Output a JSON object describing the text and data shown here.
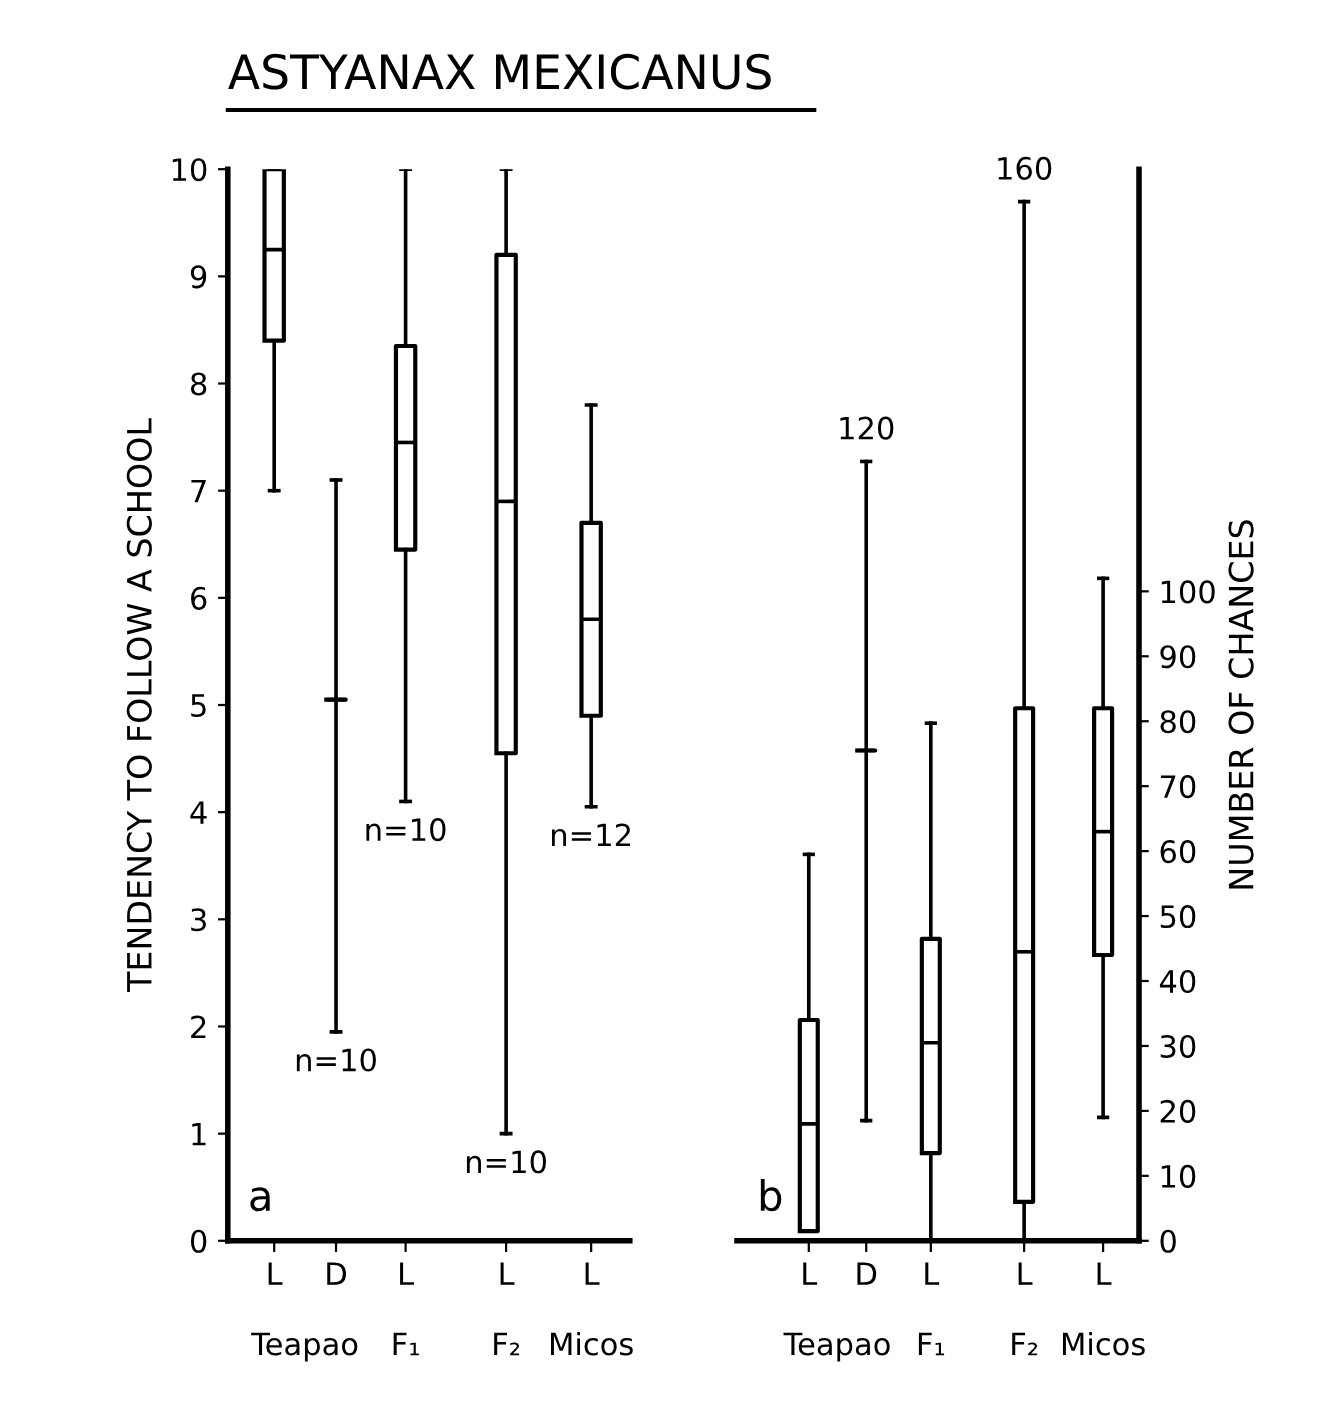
{
  "chart_data": [
    {
      "type": "box",
      "title": "ASTYANAX MEXICANUS",
      "ylabel": "TENDENCY TO FOLLOW A SCHOOL",
      "categories": [
        "L",
        "D",
        "L",
        "L",
        "L"
      ],
      "series": [
        {
          "color": "#000000",
          "boxes": [
            {
              "low": 7,
              "q1": 8.4,
              "median": 9.25,
              "q3": 10,
              "high": 10
            },
            {
              "low": 1.95,
              "q1": 5.05,
              "median": 5.05,
              "q3": 5.05,
              "high": 7.1
            },
            {
              "low": 4.1,
              "q1": 6.45,
              "median": 7.45,
              "q3": 8.35,
              "high": 10
            },
            {
              "low": 1.0,
              "q1": 4.55,
              "median": 6.9,
              "q3": 9.2,
              "high": 10
            },
            {
              "low": 4.05,
              "q1": 4.9,
              "median": 5.8,
              "q3": 6.7,
              "high": 7.8
            }
          ]
        }
      ],
      "ylim": [
        0,
        10
      ],
      "yticks": [
        0,
        1,
        2,
        3,
        4,
        5,
        6,
        7,
        8,
        9,
        10
      ],
      "annotations": [
        "Teapao",
        "F₁",
        "F₂",
        "Micos",
        "n=10",
        "n=10",
        "n=10",
        "n=12",
        "a"
      ]
    },
    {
      "type": "box",
      "y2label": "NUMBER OF CHANCES",
      "categories": [
        "L",
        "D",
        "L",
        "L",
        "L"
      ],
      "series": [
        {
          "color": "#000000",
          "axis": "y2",
          "boxes": [
            {
              "low": 1.5,
              "q1": 1.5,
              "median": 18,
              "q3": 34,
              "high": 59.5
            },
            {
              "low": 18.5,
              "q1": 75.5,
              "median": 75.5,
              "q3": 75.5,
              "high": 120
            },
            {
              "low": 0,
              "q1": 13.5,
              "median": 30.5,
              "q3": 46.5,
              "high": 79.7
            },
            {
              "low": 0,
              "q1": 6,
              "median": 44.5,
              "q3": 82,
              "high": 160
            },
            {
              "low": 19,
              "q1": 44,
              "median": 63,
              "q3": 82,
              "high": 102
            }
          ]
        }
      ],
      "y2lim": [
        0,
        165
      ],
      "y2ticks": [
        0,
        10,
        20,
        30,
        40,
        50,
        60,
        70,
        80,
        90,
        100
      ],
      "annotations": [
        "Teapao",
        "F₁",
        "F₂",
        "Micos",
        "120",
        "160",
        "b"
      ]
    }
  ]
}
